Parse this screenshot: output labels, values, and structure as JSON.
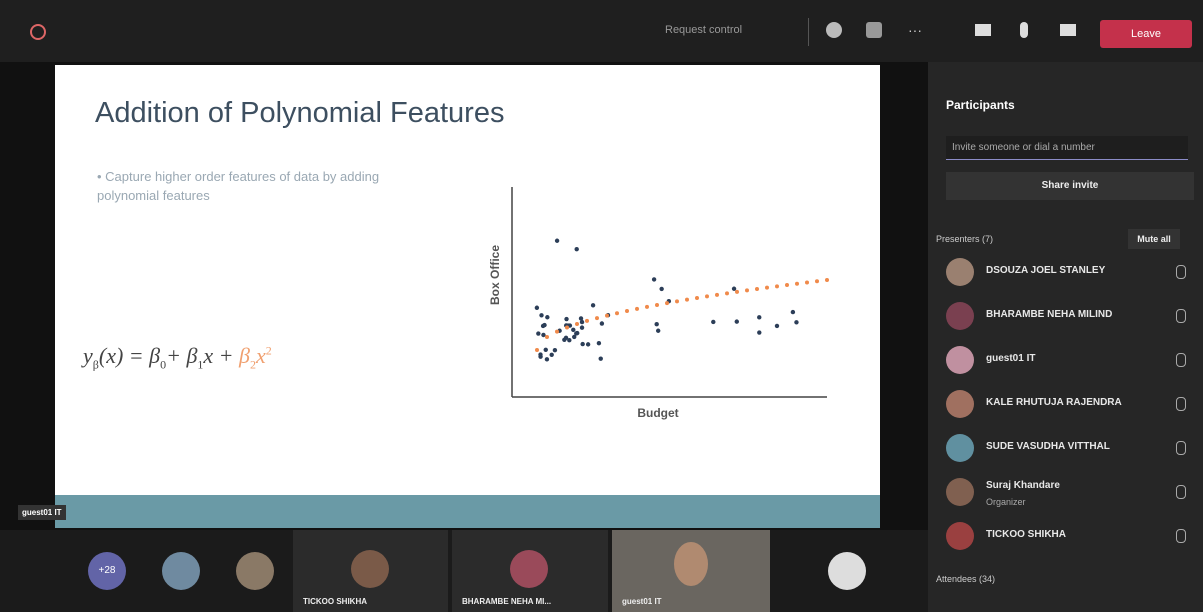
{
  "top_bar": {
    "request": "Request control",
    "leave": "Leave"
  },
  "slide": {
    "title": "Addition of Polynomial Features",
    "bullet": "Capture higher order features of data by adding polynomial features",
    "equation": [
      "y",
      "β",
      "(x) = β",
      "0",
      "+ β",
      "1",
      "x + ",
      "β",
      "2",
      "x",
      "2"
    ],
    "y_label": "Box Office",
    "x_label": "Budget"
  },
  "sharer_label": "guest01 IT",
  "panel": {
    "title": "Participants",
    "invite_placeholder": "Invite someone or dial a number",
    "share": "Share invite",
    "presenters": "Presenters (7)",
    "mute_all": "Mute all",
    "people": [
      {
        "name": "DSOUZA JOEL STANLEY"
      },
      {
        "name": "BHARAMBE NEHA MILIND"
      },
      {
        "name": "guest01 IT"
      },
      {
        "name": "KALE RHUTUJA RAJENDRA"
      },
      {
        "name": "SUDE VASUDHA VITTHAL"
      },
      {
        "name": "Suraj Khandare",
        "role": "Organizer"
      },
      {
        "name": "TICKOO SHIKHA"
      }
    ],
    "attendees": "Attendees (34)"
  },
  "strip": {
    "more": "+28",
    "tiles": [
      "TICKOO SHIKHA",
      "BHARAMBE NEHA MI...",
      "guest01 IT"
    ]
  }
}
